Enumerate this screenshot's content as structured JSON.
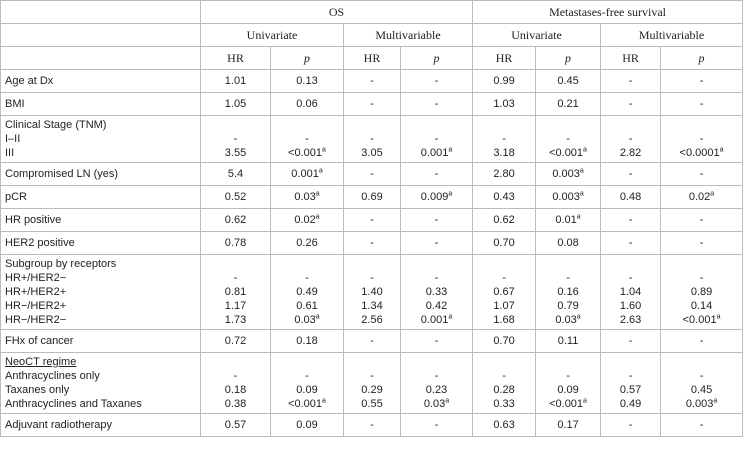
{
  "table": {
    "header": {
      "groups": [
        "OS",
        "Metastases-free survival"
      ],
      "models": [
        "Univariate",
        "Multivariable",
        "Univariate",
        "Multivariable"
      ],
      "stats": [
        "HR",
        "p",
        "HR",
        "p",
        "HR",
        "p",
        "HR",
        "p"
      ]
    },
    "rows": [
      {
        "label": "Age at Dx",
        "values": [
          "1.01",
          "0.13",
          "-",
          "-",
          "0.99",
          "0.45",
          "-",
          "-"
        ]
      },
      {
        "label": "BMI",
        "values": [
          "1.05",
          "0.06",
          "-",
          "-",
          "1.03",
          "0.21",
          "-",
          "-"
        ]
      },
      {
        "label": "Clinical Stage (TNM)",
        "lines": [
          {
            "label": "I–II",
            "values": [
              "-",
              "-",
              "-",
              "-",
              "-",
              "-",
              "-",
              "-"
            ]
          },
          {
            "label": "III",
            "values": [
              "3.55",
              {
                "text": "<0.001",
                "sup": "a"
              },
              "3.05",
              {
                "text": "0.001",
                "sup": "a"
              },
              "3.18",
              {
                "text": "<0.001",
                "sup": "a"
              },
              "2.82",
              {
                "text": "<0.0001",
                "sup": "a"
              }
            ]
          }
        ]
      },
      {
        "label": "Compromised LN (yes)",
        "values": [
          "5.4",
          {
            "text": "0.001",
            "sup": "a"
          },
          "-",
          "-",
          "2.80",
          {
            "text": "0.003",
            "sup": "a"
          },
          "-",
          "-"
        ]
      },
      {
        "label": "pCR",
        "values": [
          "0.52",
          {
            "text": "0.03",
            "sup": "a"
          },
          "0.69",
          {
            "text": "0.009",
            "sup": "a"
          },
          "0.43",
          {
            "text": "0.003",
            "sup": "a"
          },
          "0.48",
          {
            "text": "0.02",
            "sup": "a"
          }
        ]
      },
      {
        "label": "HR positive",
        "values": [
          "0.62",
          {
            "text": "0.02",
            "sup": "a"
          },
          "-",
          "-",
          "0.62",
          {
            "text": "0.01",
            "sup": "a"
          },
          "-",
          "-"
        ]
      },
      {
        "label": "HER2 positive",
        "values": [
          "0.78",
          "0.26",
          "-",
          "-",
          "0.70",
          "0.08",
          "-",
          "-"
        ]
      },
      {
        "label": "Subgroup by receptors",
        "lines": [
          {
            "label": "HR+/HER2−",
            "values": [
              "-",
              "-",
              "-",
              "-",
              "-",
              "-",
              "-",
              "-"
            ]
          },
          {
            "label": "HR+/HER2+",
            "values": [
              "0.81",
              "0.49",
              "1.40",
              "0.33",
              "0.67",
              "0.16",
              "1.04",
              "0.89"
            ]
          },
          {
            "label": "HR−/HER2+",
            "values": [
              "1.17",
              "0.61",
              "1.34",
              "0.42",
              "1.07",
              "0.79",
              "1.60",
              "0.14"
            ]
          },
          {
            "label": "HR−/HER2−",
            "values": [
              "1.73",
              {
                "text": "0.03",
                "sup": "a"
              },
              "2.56",
              {
                "text": "0.001",
                "sup": "a"
              },
              "1.68",
              {
                "text": "0.03",
                "sup": "a"
              },
              "2.63",
              {
                "text": "<0.001",
                "sup": "a"
              }
            ]
          }
        ]
      },
      {
        "label": "FHx of cancer",
        "values": [
          "0.72",
          "0.18",
          "-",
          "-",
          "0.70",
          "0.11",
          "-",
          "-"
        ]
      },
      {
        "label": "NeoCT regime",
        "underline": true,
        "lines": [
          {
            "label": "Anthracyclines only",
            "values": [
              "-",
              "-",
              "-",
              "-",
              "-",
              "-",
              "-",
              "-"
            ]
          },
          {
            "label": "Taxanes only",
            "values": [
              "0.18",
              "0.09",
              "0.29",
              "0.23",
              "0.28",
              "0.09",
              "0.57",
              "0.45"
            ]
          },
          {
            "label": "Anthracyclines and Taxanes",
            "values": [
              "0.38",
              {
                "text": "<0.001",
                "sup": "a"
              },
              "0.55",
              {
                "text": "0.03",
                "sup": "a"
              },
              "0.33",
              {
                "text": "<0.001",
                "sup": "a"
              },
              "0.49",
              {
                "text": "0.003",
                "sup": "a"
              }
            ]
          }
        ]
      },
      {
        "label": "Adjuvant radiotherapy",
        "values": [
          "0.57",
          "0.09",
          "-",
          "-",
          "0.63",
          "0.17",
          "-",
          "-"
        ]
      }
    ]
  }
}
